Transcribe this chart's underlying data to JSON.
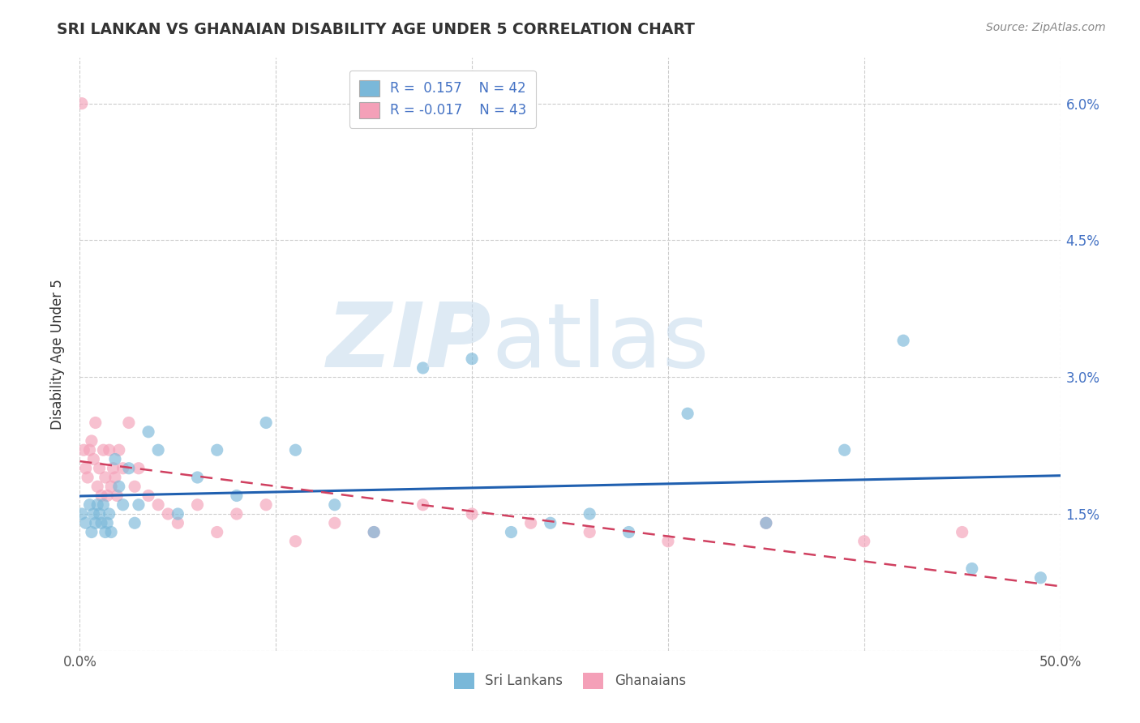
{
  "title": "SRI LANKAN VS GHANAIAN DISABILITY AGE UNDER 5 CORRELATION CHART",
  "source": "Source: ZipAtlas.com",
  "ylabel": "Disability Age Under 5",
  "xlim": [
    0.0,
    0.5
  ],
  "ylim": [
    0.0,
    0.065
  ],
  "color_sri": "#7ab8d9",
  "color_gha": "#f4a0b8",
  "line_color_sri": "#2060b0",
  "line_color_gha": "#d04060",
  "sri_x": [
    0.001,
    0.003,
    0.005,
    0.006,
    0.007,
    0.008,
    0.009,
    0.01,
    0.011,
    0.012,
    0.013,
    0.014,
    0.015,
    0.016,
    0.018,
    0.02,
    0.022,
    0.025,
    0.028,
    0.03,
    0.035,
    0.04,
    0.05,
    0.06,
    0.07,
    0.08,
    0.095,
    0.11,
    0.13,
    0.15,
    0.175,
    0.2,
    0.22,
    0.24,
    0.26,
    0.28,
    0.31,
    0.35,
    0.39,
    0.42,
    0.455,
    0.49
  ],
  "sri_y": [
    0.015,
    0.014,
    0.016,
    0.013,
    0.015,
    0.014,
    0.016,
    0.015,
    0.014,
    0.016,
    0.013,
    0.014,
    0.015,
    0.013,
    0.021,
    0.018,
    0.016,
    0.02,
    0.014,
    0.016,
    0.024,
    0.022,
    0.015,
    0.019,
    0.022,
    0.017,
    0.025,
    0.022,
    0.016,
    0.013,
    0.031,
    0.032,
    0.013,
    0.014,
    0.015,
    0.013,
    0.026,
    0.014,
    0.022,
    0.034,
    0.009,
    0.008
  ],
  "gha_x": [
    0.001,
    0.002,
    0.003,
    0.004,
    0.005,
    0.006,
    0.007,
    0.008,
    0.009,
    0.01,
    0.011,
    0.012,
    0.013,
    0.014,
    0.015,
    0.016,
    0.017,
    0.018,
    0.019,
    0.02,
    0.022,
    0.025,
    0.028,
    0.03,
    0.035,
    0.04,
    0.045,
    0.05,
    0.06,
    0.07,
    0.08,
    0.095,
    0.11,
    0.13,
    0.15,
    0.175,
    0.2,
    0.23,
    0.26,
    0.3,
    0.35,
    0.4,
    0.45
  ],
  "gha_y": [
    0.06,
    0.022,
    0.02,
    0.019,
    0.022,
    0.023,
    0.021,
    0.025,
    0.018,
    0.02,
    0.017,
    0.022,
    0.019,
    0.017,
    0.022,
    0.018,
    0.02,
    0.019,
    0.017,
    0.022,
    0.02,
    0.025,
    0.018,
    0.02,
    0.017,
    0.016,
    0.015,
    0.014,
    0.016,
    0.013,
    0.015,
    0.016,
    0.012,
    0.014,
    0.013,
    0.016,
    0.015,
    0.014,
    0.013,
    0.012,
    0.014,
    0.012,
    0.013
  ]
}
